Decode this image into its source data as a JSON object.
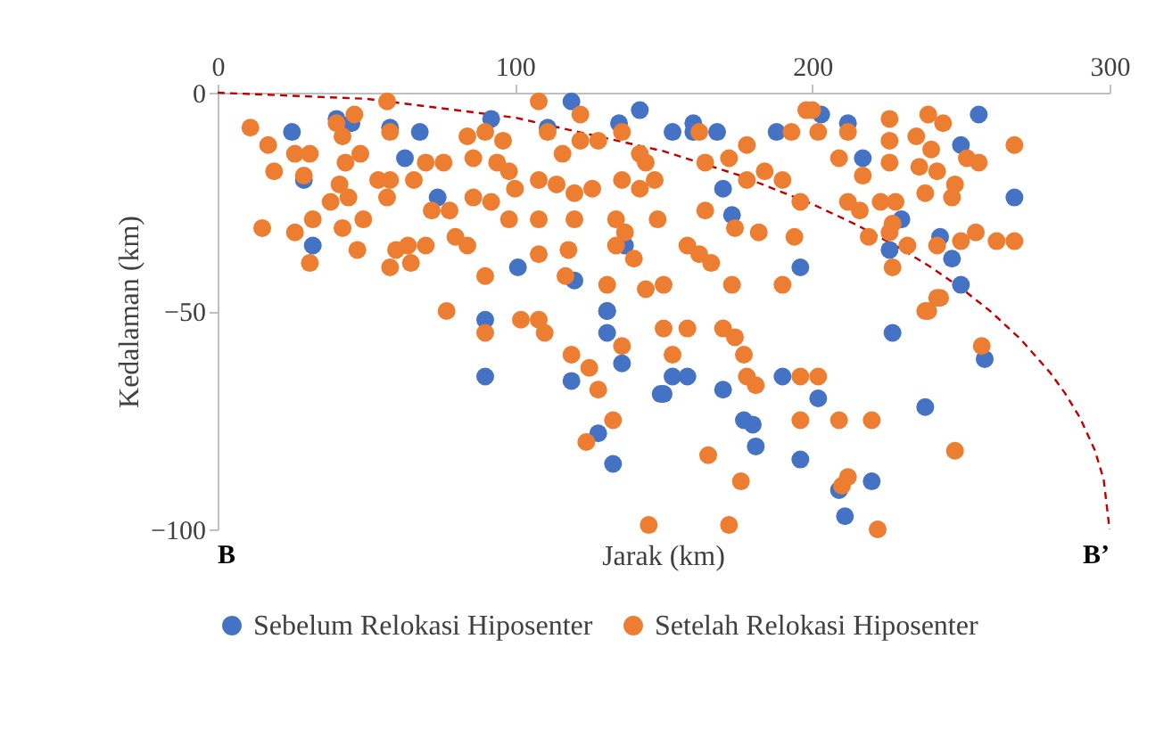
{
  "chart_data": {
    "type": "scatter",
    "xlabel": "Jarak (km)",
    "ylabel": "Kedalaman (km)",
    "xlim": [
      0,
      300
    ],
    "xticks": [
      0,
      100,
      200,
      300
    ],
    "ylim": [
      -100,
      0
    ],
    "yticks": [
      0,
      -50,
      -100
    ],
    "marker": "circle",
    "legend": "bottom",
    "grid": false,
    "annotations": [
      "B",
      "B’"
    ],
    "series": [
      {
        "name": "Sebelum Relokasi Hiposenter",
        "color": "#4472c4",
        "x": [
          90,
          90,
          131,
          131,
          119,
          136,
          128,
          133,
          149,
          153,
          158,
          150,
          170,
          177,
          180,
          181,
          190,
          202,
          196,
          220,
          209,
          211,
          227,
          238,
          258,
          25,
          29,
          32,
          40,
          58,
          68,
          63,
          74,
          101,
          92,
          119,
          135,
          142,
          153,
          160,
          168,
          170,
          188,
          137,
          120,
          196,
          256,
          268,
          250,
          203,
          212,
          217,
          230,
          226,
          247,
          243,
          250,
          131,
          173,
          160,
          111,
          45
        ],
        "values": [
          -52,
          -65,
          -50,
          -55,
          -66,
          -62,
          -78,
          -85,
          -69,
          -65,
          -65,
          -69,
          -68,
          -75,
          -76,
          -81,
          -65,
          -70,
          -84,
          -89,
          -91,
          -97,
          -55,
          -72,
          -61,
          -9,
          -20,
          -35,
          -6,
          -8,
          -9,
          -15,
          -24,
          -40,
          -6,
          -2,
          -7,
          -4,
          -9,
          -7,
          -9,
          -22,
          -9,
          -35,
          -43,
          -40,
          -5,
          -24,
          -12,
          -5,
          -7,
          -15,
          -29,
          -36,
          -38,
          -33,
          -44,
          -50,
          -28,
          -9,
          -8,
          -7
        ]
      },
      {
        "name": "Setelah Relokasi Hiposenter",
        "color": "#ed7d31",
        "x": [
          77,
          90,
          102,
          108,
          110,
          136,
          119,
          125,
          128,
          133,
          124,
          145,
          150,
          158,
          153,
          170,
          174,
          177,
          178,
          181,
          165,
          176,
          172,
          196,
          202,
          196,
          209,
          220,
          212,
          210,
          222,
          242,
          238,
          257,
          248,
          11,
          17,
          19,
          26,
          31,
          29,
          15,
          26,
          32,
          31,
          47,
          40,
          46,
          42,
          43,
          48,
          41,
          44,
          38,
          42,
          49,
          54,
          58,
          57,
          57,
          58,
          66,
          70,
          76,
          60,
          64,
          70,
          58,
          65,
          72,
          78,
          80,
          84,
          90,
          84,
          90,
          96,
          86,
          94,
          98,
          86,
          92,
          98,
          108,
          122,
          111,
          116,
          122,
          128,
          136,
          142,
          144,
          162,
          164,
          172,
          178,
          178,
          184,
          193,
          198,
          190,
          196,
          100,
          108,
          114,
          120,
          126,
          136,
          142,
          147,
          108,
          120,
          134,
          137,
          148,
          164,
          174,
          182,
          194,
          158,
          162,
          166,
          134,
          140,
          108,
          118,
          117,
          131,
          144,
          150,
          190,
          173,
          268,
          226,
          239,
          244,
          212,
          226,
          235,
          240,
          209,
          217,
          226,
          236,
          242,
          252,
          256,
          248,
          247,
          238,
          212,
          216,
          223,
          228,
          219,
          226,
          227,
          232,
          227,
          242,
          250,
          255,
          262,
          268,
          243,
          239,
          200,
          202
        ],
        "values": [
          -50,
          -55,
          -52,
          -52,
          -55,
          -58,
          -60,
          -63,
          -68,
          -75,
          -80,
          -99,
          -54,
          -54,
          -60,
          -54,
          -56,
          -60,
          -65,
          -67,
          -83,
          -89,
          -99,
          -65,
          -65,
          -75,
          -75,
          -75,
          -88,
          -90,
          -100,
          -47,
          -50,
          -58,
          -82,
          -8,
          -12,
          -18,
          -14,
          -14,
          -19,
          -31,
          -32,
          -29,
          -39,
          -36,
          -7,
          -5,
          -10,
          -16,
          -14,
          -21,
          -24,
          -25,
          -31,
          -29,
          -20,
          -20,
          -24,
          -2,
          -9,
          -20,
          -16,
          -16,
          -36,
          -35,
          -35,
          -40,
          -39,
          -27,
          -27,
          -33,
          -35,
          -42,
          -10,
          -9,
          -11,
          -15,
          -16,
          -18,
          -24,
          -25,
          -29,
          -2,
          -5,
          -9,
          -14,
          -11,
          -11,
          -9,
          -14,
          -16,
          -9,
          -16,
          -15,
          -12,
          -20,
          -18,
          -9,
          -4,
          -20,
          -25,
          -22,
          -20,
          -21,
          -23,
          -22,
          -20,
          -22,
          -20,
          -29,
          -29,
          -29,
          -32,
          -29,
          -27,
          -31,
          -32,
          -33,
          -35,
          -37,
          -39,
          -35,
          -38,
          -37,
          -36,
          -42,
          -44,
          -45,
          -44,
          -44,
          -44,
          -12,
          -6,
          -5,
          -7,
          -9,
          -11,
          -10,
          -13,
          -15,
          -19,
          -16,
          -17,
          -18,
          -15,
          -16,
          -21,
          -24,
          -23,
          -25,
          -27,
          -25,
          -25,
          -33,
          -32,
          -30,
          -35,
          -40,
          -35,
          -34,
          -32,
          -34,
          -34,
          -47,
          -50,
          -4,
          -9
        ]
      },
      {
        "type": "line",
        "color": "#c00000",
        "line_style": "dashed",
        "marker": "none",
        "x": [
          0,
          50,
          100,
          150,
          175,
          200,
          215,
          230,
          240,
          250,
          260,
          270,
          280,
          285,
          290,
          295,
          298,
          300
        ],
        "values": [
          0,
          -1.4,
          -5.7,
          -13.4,
          -18.8,
          -25.5,
          -30.3,
          -35.8,
          -40,
          -44.7,
          -50.1,
          -56.4,
          -64.1,
          -68.8,
          -74.4,
          -81.8,
          -88.5,
          -100
        ]
      }
    ]
  }
}
